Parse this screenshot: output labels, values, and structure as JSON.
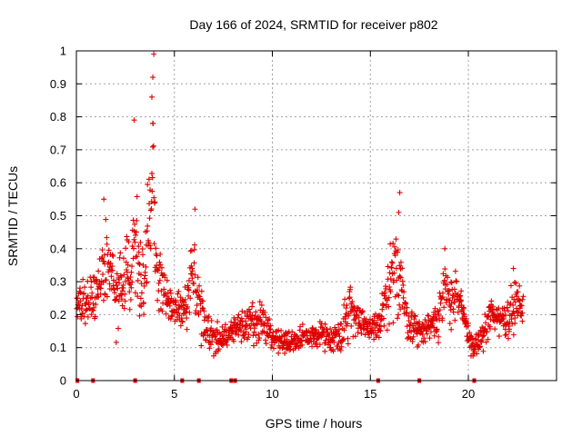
{
  "chart_data": {
    "type": "scatter",
    "title": "Day 166 of 2024, SRMTID for receiver p802",
    "xlabel": "GPS time / hours",
    "ylabel": "SRMTID / TECUs",
    "xlim": [
      0,
      24.5
    ],
    "ylim": [
      0,
      1
    ],
    "grid": true,
    "marker": "plus",
    "color": "#e00000",
    "xticks": [
      {
        "value": 0,
        "label": "0"
      },
      {
        "value": 5,
        "label": "5"
      },
      {
        "value": 10,
        "label": "10"
      },
      {
        "value": 15,
        "label": "15"
      },
      {
        "value": 20,
        "label": "20"
      }
    ],
    "yticks": [
      {
        "value": 0,
        "label": "0"
      },
      {
        "value": 0.1,
        "label": "0.1"
      },
      {
        "value": 0.2,
        "label": "0.2"
      },
      {
        "value": 0.3,
        "label": "0.3"
      },
      {
        "value": 0.4,
        "label": "0.4"
      },
      {
        "value": 0.5,
        "label": "0.5"
      },
      {
        "value": 0.6,
        "label": "0.6"
      },
      {
        "value": 0.7,
        "label": "0.7"
      },
      {
        "value": 0.8,
        "label": "0.8"
      },
      {
        "value": 0.9,
        "label": "0.9"
      },
      {
        "value": 1,
        "label": "1"
      }
    ],
    "zero_markers_x": [
      0.05,
      0.85,
      3.0,
      5.4,
      6.25,
      7.9,
      8.1,
      15.4,
      17.5,
      20.3
    ],
    "envelope": [
      [
        0.0,
        0.12,
        0.3
      ],
      [
        0.5,
        0.15,
        0.35
      ],
      [
        1.0,
        0.12,
        0.38
      ],
      [
        1.3,
        0.18,
        0.5
      ],
      [
        1.6,
        0.2,
        0.52
      ],
      [
        2.0,
        0.1,
        0.4
      ],
      [
        2.4,
        0.15,
        0.45
      ],
      [
        2.8,
        0.18,
        0.55
      ],
      [
        3.0,
        0.18,
        0.78
      ],
      [
        3.3,
        0.14,
        0.4
      ],
      [
        3.6,
        0.16,
        0.6
      ],
      [
        3.9,
        0.22,
        0.99
      ],
      [
        4.1,
        0.2,
        0.5
      ],
      [
        4.5,
        0.16,
        0.36
      ],
      [
        5.0,
        0.14,
        0.3
      ],
      [
        5.5,
        0.09,
        0.32
      ],
      [
        6.0,
        0.09,
        0.52
      ],
      [
        6.5,
        0.08,
        0.25
      ],
      [
        7.0,
        0.06,
        0.2
      ],
      [
        7.5,
        0.08,
        0.18
      ],
      [
        8.0,
        0.09,
        0.22
      ],
      [
        8.5,
        0.1,
        0.24
      ],
      [
        9.0,
        0.09,
        0.26
      ],
      [
        9.5,
        0.11,
        0.26
      ],
      [
        10.0,
        0.08,
        0.18
      ],
      [
        10.5,
        0.07,
        0.17
      ],
      [
        11.0,
        0.08,
        0.16
      ],
      [
        11.5,
        0.08,
        0.18
      ],
      [
        12.0,
        0.09,
        0.17
      ],
      [
        12.5,
        0.09,
        0.2
      ],
      [
        13.0,
        0.07,
        0.18
      ],
      [
        13.5,
        0.07,
        0.22
      ],
      [
        14.0,
        0.09,
        0.36
      ],
      [
        14.5,
        0.1,
        0.24
      ],
      [
        15.0,
        0.1,
        0.22
      ],
      [
        15.5,
        0.09,
        0.25
      ],
      [
        16.0,
        0.1,
        0.45
      ],
      [
        16.5,
        0.12,
        0.57
      ],
      [
        16.8,
        0.11,
        0.3
      ],
      [
        17.0,
        0.09,
        0.25
      ],
      [
        17.5,
        0.08,
        0.21
      ],
      [
        18.0,
        0.09,
        0.24
      ],
      [
        18.5,
        0.1,
        0.3
      ],
      [
        18.8,
        0.12,
        0.4
      ],
      [
        19.2,
        0.14,
        0.37
      ],
      [
        19.6,
        0.14,
        0.32
      ],
      [
        20.0,
        0.08,
        0.2
      ],
      [
        20.3,
        0.05,
        0.14
      ],
      [
        20.7,
        0.08,
        0.19
      ],
      [
        21.2,
        0.1,
        0.3
      ],
      [
        21.6,
        0.12,
        0.26
      ],
      [
        22.0,
        0.1,
        0.28
      ],
      [
        22.4,
        0.13,
        0.34
      ],
      [
        22.8,
        0.14,
        0.3
      ]
    ],
    "spikes": [
      {
        "x": 1.4,
        "y": 0.55
      },
      {
        "x": 2.95,
        "y": 0.79
      },
      {
        "x": 3.85,
        "y": 0.86
      },
      {
        "x": 3.9,
        "y": 0.92
      },
      {
        "x": 3.95,
        "y": 0.99
      },
      {
        "x": 3.9,
        "y": 0.78
      },
      {
        "x": 6.05,
        "y": 0.52
      },
      {
        "x": 16.5,
        "y": 0.57
      },
      {
        "x": 16.45,
        "y": 0.51
      },
      {
        "x": 18.8,
        "y": 0.4
      },
      {
        "x": 22.3,
        "y": 0.34
      }
    ]
  }
}
